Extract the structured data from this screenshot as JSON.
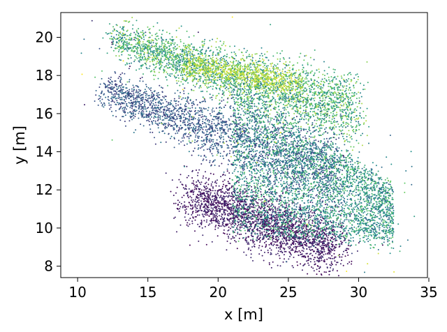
{
  "chart_data": {
    "type": "scatter",
    "title": "",
    "xlabel": "x [m]",
    "ylabel": "y [m]",
    "xlim": [
      8.8,
      34.9
    ],
    "ylim": [
      7.4,
      21.3
    ],
    "xticks": [
      10,
      15,
      20,
      25,
      30,
      35
    ],
    "xtick_labels": [
      "10",
      "15",
      "20",
      "25",
      "30",
      "35"
    ],
    "yticks": [
      8,
      10,
      12,
      14,
      16,
      18,
      20
    ],
    "ytick_labels": [
      "8",
      "10",
      "12",
      "14",
      "16",
      "18",
      "20"
    ],
    "grid": false,
    "legend": "none",
    "colormap": "viridis",
    "colormap_colors": [
      "#440154",
      "#3b528b",
      "#21908d",
      "#5dc963",
      "#fde725"
    ],
    "point_count_estimate": 14000,
    "clusters": [
      {
        "description": "upper band",
        "x_range": [
          12,
          30
        ],
        "y_range": [
          16.5,
          20.7
        ],
        "color_level": 0.65
      },
      {
        "description": "bright core of upper band",
        "x_range": [
          17,
          26
        ],
        "y_range": [
          17.2,
          18.8
        ],
        "color_level": 0.85
      },
      {
        "description": "middle band",
        "x_range": [
          12,
          29
        ],
        "y_range": [
          13,
          17.5
        ],
        "color_level": 0.2
      },
      {
        "description": "lower dense region",
        "x_range": [
          17,
          29
        ],
        "y_range": [
          8.1,
          12.5
        ],
        "color_level": 0.05
      },
      {
        "description": "right spread",
        "x_range": [
          22,
          34
        ],
        "y_range": [
          9,
          17
        ],
        "color_level": 0.5
      }
    ]
  }
}
